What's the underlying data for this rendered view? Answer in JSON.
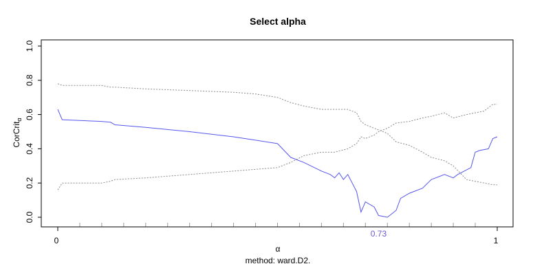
{
  "chart_data": {
    "type": "line",
    "title": "Select alpha",
    "xlabel": "α",
    "ylabel_main": "CorCrit",
    "ylabel_sub": "α",
    "subtitle": "method: ward.D2.",
    "xlim": [
      0,
      1
    ],
    "ylim": [
      0,
      1
    ],
    "x_ticks": [
      "0",
      "1"
    ],
    "y_ticks": [
      "0.0",
      "0.2",
      "0.4",
      "0.6",
      "0.8",
      "1.0"
    ],
    "selected_alpha": "0.73",
    "colors": {
      "main": "#5555ee",
      "bounds": "#888888",
      "selected": "#6a5acd"
    },
    "series": [
      {
        "role": "main",
        "x": [
          0,
          0.01,
          0.05,
          0.1,
          0.12,
          0.13,
          0.2,
          0.3,
          0.4,
          0.45,
          0.5,
          0.53,
          0.56,
          0.6,
          0.62,
          0.63,
          0.64,
          0.65,
          0.66,
          0.67,
          0.68,
          0.69,
          0.7,
          0.72,
          0.73,
          0.75,
          0.77,
          0.78,
          0.8,
          0.83,
          0.85,
          0.88,
          0.9,
          0.91,
          0.94,
          0.95,
          0.96,
          0.98,
          0.99,
          1.0
        ],
        "y": [
          0.63,
          0.57,
          0.565,
          0.56,
          0.555,
          0.54,
          0.525,
          0.5,
          0.47,
          0.45,
          0.43,
          0.35,
          0.32,
          0.27,
          0.25,
          0.23,
          0.26,
          0.22,
          0.25,
          0.2,
          0.15,
          0.03,
          0.09,
          0.06,
          0.01,
          0.0,
          0.04,
          0.11,
          0.14,
          0.17,
          0.22,
          0.25,
          0.23,
          0.25,
          0.29,
          0.38,
          0.39,
          0.4,
          0.46,
          0.47
        ]
      },
      {
        "role": "upper",
        "x": [
          0,
          0.01,
          0.1,
          0.12,
          0.13,
          0.2,
          0.3,
          0.4,
          0.45,
          0.5,
          0.53,
          0.56,
          0.6,
          0.63,
          0.66,
          0.68,
          0.69,
          0.7,
          0.72,
          0.73,
          0.75,
          0.77,
          0.8,
          0.83,
          0.85,
          0.88,
          0.9,
          0.93,
          0.95,
          0.97,
          0.99,
          1.0
        ],
        "y": [
          0.78,
          0.77,
          0.77,
          0.76,
          0.76,
          0.75,
          0.74,
          0.73,
          0.72,
          0.7,
          0.67,
          0.65,
          0.63,
          0.63,
          0.63,
          0.61,
          0.56,
          0.54,
          0.52,
          0.51,
          0.49,
          0.44,
          0.42,
          0.38,
          0.35,
          0.33,
          0.3,
          0.22,
          0.21,
          0.2,
          0.19,
          0.19
        ]
      },
      {
        "role": "lower",
        "x": [
          0,
          0.01,
          0.1,
          0.12,
          0.13,
          0.2,
          0.3,
          0.4,
          0.45,
          0.5,
          0.53,
          0.56,
          0.6,
          0.63,
          0.66,
          0.68,
          0.69,
          0.7,
          0.72,
          0.73,
          0.75,
          0.77,
          0.8,
          0.83,
          0.85,
          0.88,
          0.9,
          0.93,
          0.95,
          0.97,
          0.99,
          1.0
        ],
        "y": [
          0.16,
          0.2,
          0.2,
          0.21,
          0.22,
          0.23,
          0.25,
          0.27,
          0.28,
          0.29,
          0.32,
          0.36,
          0.38,
          0.38,
          0.4,
          0.43,
          0.47,
          0.46,
          0.48,
          0.5,
          0.52,
          0.55,
          0.56,
          0.58,
          0.59,
          0.61,
          0.58,
          0.6,
          0.61,
          0.62,
          0.66,
          0.66
        ]
      }
    ]
  }
}
